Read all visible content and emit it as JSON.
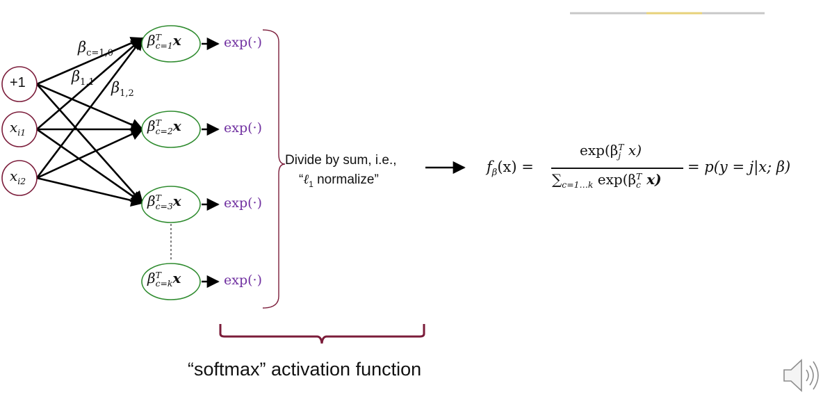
{
  "inputs": [
    {
      "label": "+1"
    },
    {
      "label": "x",
      "sub": "i1"
    },
    {
      "label": "x",
      "sub": "i2"
    }
  ],
  "weights": [
    {
      "sym": "β",
      "sub": "c=1,0"
    },
    {
      "sym": "β",
      "sub": "1,1"
    },
    {
      "sym": "β",
      "sub": "1,2"
    }
  ],
  "units": [
    {
      "sym": "β",
      "sup": "T",
      "sub": "c=1",
      "vec": "x"
    },
    {
      "sym": "β",
      "sup": "T",
      "sub": "c=2",
      "vec": "x"
    },
    {
      "sym": "β",
      "sup": "T",
      "sub": "c=3",
      "vec": "x"
    },
    {
      "sym": "β",
      "sup": "T",
      "sub": "c=k",
      "vec": "x"
    }
  ],
  "exp_label": "exp(·)",
  "normalize": {
    "line1": "Divide by sum, i.e.,",
    "line2_prefix": "“",
    "line2_sym": "ℓ",
    "line2_sub": "1",
    "line2_suffix": " normalize”"
  },
  "formula": {
    "lhs_f": "f",
    "lhs_sub": "β",
    "lhs_arg": "(x) =",
    "numerator": "exp(β",
    "numerator_sup": "T",
    "numerator_sub": "j",
    "numerator_tail": " x)",
    "denominator_sum": "∑",
    "denominator_sub": "c=1…k",
    "denominator_body": " exp(β",
    "denominator_sup": "T",
    "denominator_sub2": "c",
    "denominator_tail": " x)",
    "rhs": "= p(y = j|x; β)"
  },
  "caption": "“softmax” activation function",
  "colors": {
    "input_circle": "#7b1c3a",
    "unit_ellipse": "#2e8b2e",
    "bracket": "#7b1c3a",
    "exp_text": "#7030a0",
    "arrow": "#000000"
  },
  "icons": {
    "speaker": "speaker-icon"
  }
}
